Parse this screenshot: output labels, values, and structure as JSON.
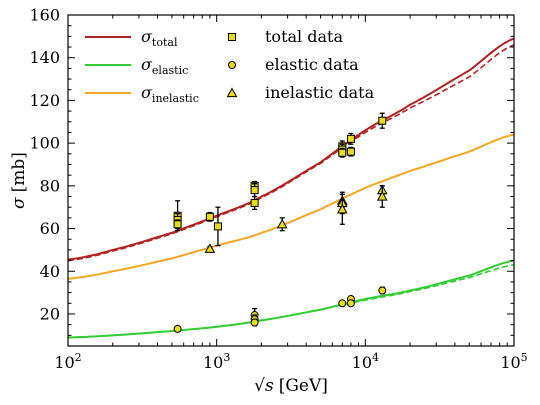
{
  "chart_data": {
    "type": "line",
    "title": "",
    "xlabel": {
      "prefix": "√s",
      "unit": "[GeV]"
    },
    "ylabel": {
      "symbol": "σ",
      "unit": "[mb]"
    },
    "xscale": "log",
    "xlim": [
      100,
      100000
    ],
    "ylim": [
      5,
      160
    ],
    "y_ticks": [
      20,
      40,
      60,
      80,
      100,
      120,
      140,
      160
    ],
    "x_ticks": [
      {
        "value": 100,
        "base": "10",
        "exp": "2"
      },
      {
        "value": 1000,
        "base": "10",
        "exp": "3"
      },
      {
        "value": 10000,
        "base": "10",
        "exp": "4"
      },
      {
        "value": 100000,
        "base": "10",
        "exp": "5"
      }
    ],
    "grid": false,
    "legend_position": "top-left",
    "curves": [
      {
        "key": "total",
        "symbol": "σ",
        "subscript": "total",
        "color": "#b22222",
        "x": [
          100,
          200,
          500,
          1000,
          2000,
          5000,
          10000,
          20000,
          50000,
          100000
        ],
        "y": [
          45.5,
          50,
          58,
          66,
          75,
          91,
          106,
          118,
          134,
          149
        ],
        "y_alt": [
          45,
          49.5,
          57.5,
          65.5,
          74.5,
          90.5,
          105,
          116.5,
          131,
          146
        ]
      },
      {
        "key": "elastic",
        "symbol": "σ",
        "subscript": "elastic",
        "color": "#33cc33",
        "x": [
          100,
          200,
          500,
          1000,
          2000,
          5000,
          10000,
          20000,
          50000,
          100000
        ],
        "y": [
          9,
          10,
          12,
          14,
          17,
          22,
          27,
          31,
          38,
          45
        ],
        "y_alt": [
          9,
          10,
          12,
          14,
          17,
          22,
          26.5,
          30.5,
          37,
          43
        ]
      },
      {
        "key": "inelastic",
        "symbol": "σ",
        "subscript": "inelastic",
        "color": "#f5a623",
        "x": [
          100,
          200,
          500,
          1000,
          2000,
          5000,
          10000,
          20000,
          50000,
          100000
        ],
        "y": [
          36.5,
          40,
          46,
          52,
          58,
          69,
          79,
          87,
          96,
          104
        ]
      }
    ],
    "data_series": [
      {
        "key": "total",
        "name": "total data",
        "marker": "square",
        "color": "#e6dd1e",
        "points": [
          {
            "x": 546,
            "y": 66,
            "err": 7
          },
          {
            "x": 546,
            "y": 64,
            "err": 3
          },
          {
            "x": 546,
            "y": 62,
            "err": 2
          },
          {
            "x": 900,
            "y": 65.5,
            "err": 2
          },
          {
            "x": 1020,
            "y": 61,
            "err": 9
          },
          {
            "x": 1800,
            "y": 80,
            "err": 2
          },
          {
            "x": 1800,
            "y": 78,
            "err": 3
          },
          {
            "x": 1800,
            "y": 72,
            "err": 3
          },
          {
            "x": 7000,
            "y": 98.5,
            "err": 2.5
          },
          {
            "x": 7000,
            "y": 97,
            "err": 2.5
          },
          {
            "x": 7000,
            "y": 95.5,
            "err": 2
          },
          {
            "x": 8000,
            "y": 102,
            "err": 2.5
          },
          {
            "x": 8000,
            "y": 96,
            "err": 2
          },
          {
            "x": 13000,
            "y": 110.5,
            "err": 3.5
          }
        ]
      },
      {
        "key": "elastic",
        "name": "elastic data",
        "marker": "circle",
        "color": "#e6dd1e",
        "points": [
          {
            "x": 546,
            "y": 13,
            "err": 0.6
          },
          {
            "x": 1800,
            "y": 19.5,
            "err": 3
          },
          {
            "x": 1800,
            "y": 17.5,
            "err": 2
          },
          {
            "x": 1800,
            "y": 16,
            "err": 1.5
          },
          {
            "x": 7000,
            "y": 25,
            "err": 1
          },
          {
            "x": 8000,
            "y": 27,
            "err": 1
          },
          {
            "x": 8000,
            "y": 25,
            "err": 1
          },
          {
            "x": 13000,
            "y": 31,
            "err": 1.5
          }
        ]
      },
      {
        "key": "inelastic",
        "name": "inelastic data",
        "marker": "triangle",
        "color": "#e6dd1e",
        "points": [
          {
            "x": 900,
            "y": 50.5,
            "err": 1
          },
          {
            "x": 2760,
            "y": 62,
            "err": 3
          },
          {
            "x": 7000,
            "y": 73,
            "err": 3
          },
          {
            "x": 7000,
            "y": 72,
            "err": 5
          },
          {
            "x": 7000,
            "y": 69,
            "err": 7
          },
          {
            "x": 13000,
            "y": 78,
            "err": 2
          },
          {
            "x": 13000,
            "y": 75,
            "err": 5
          }
        ]
      }
    ]
  }
}
